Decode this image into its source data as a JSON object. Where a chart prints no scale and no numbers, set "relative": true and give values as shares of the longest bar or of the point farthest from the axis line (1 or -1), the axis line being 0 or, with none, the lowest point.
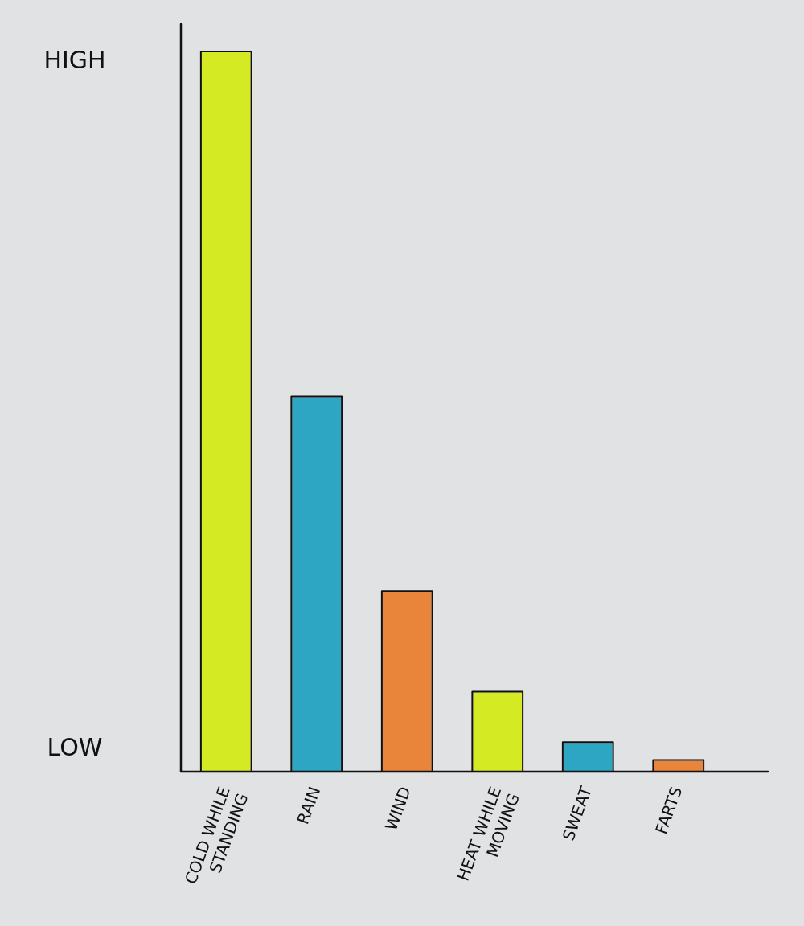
{
  "chart_data": {
    "type": "bar",
    "categories": [
      "COLD WHILE STANDING",
      "RAIN",
      "WIND",
      "HEAT WHILE MOVING",
      "SWEAT",
      "FARTS"
    ],
    "values": [
      1,
      0.52,
      0.25,
      0.11,
      0.04,
      0.015
    ],
    "colors": [
      "#d4ea22",
      "#2ca6c2",
      "#e8853a",
      "#d4ea22",
      "#2ca6c2",
      "#e8853a"
    ],
    "relative": true,
    "annotations": [
      "HIGH",
      "LOW"
    ]
  }
}
